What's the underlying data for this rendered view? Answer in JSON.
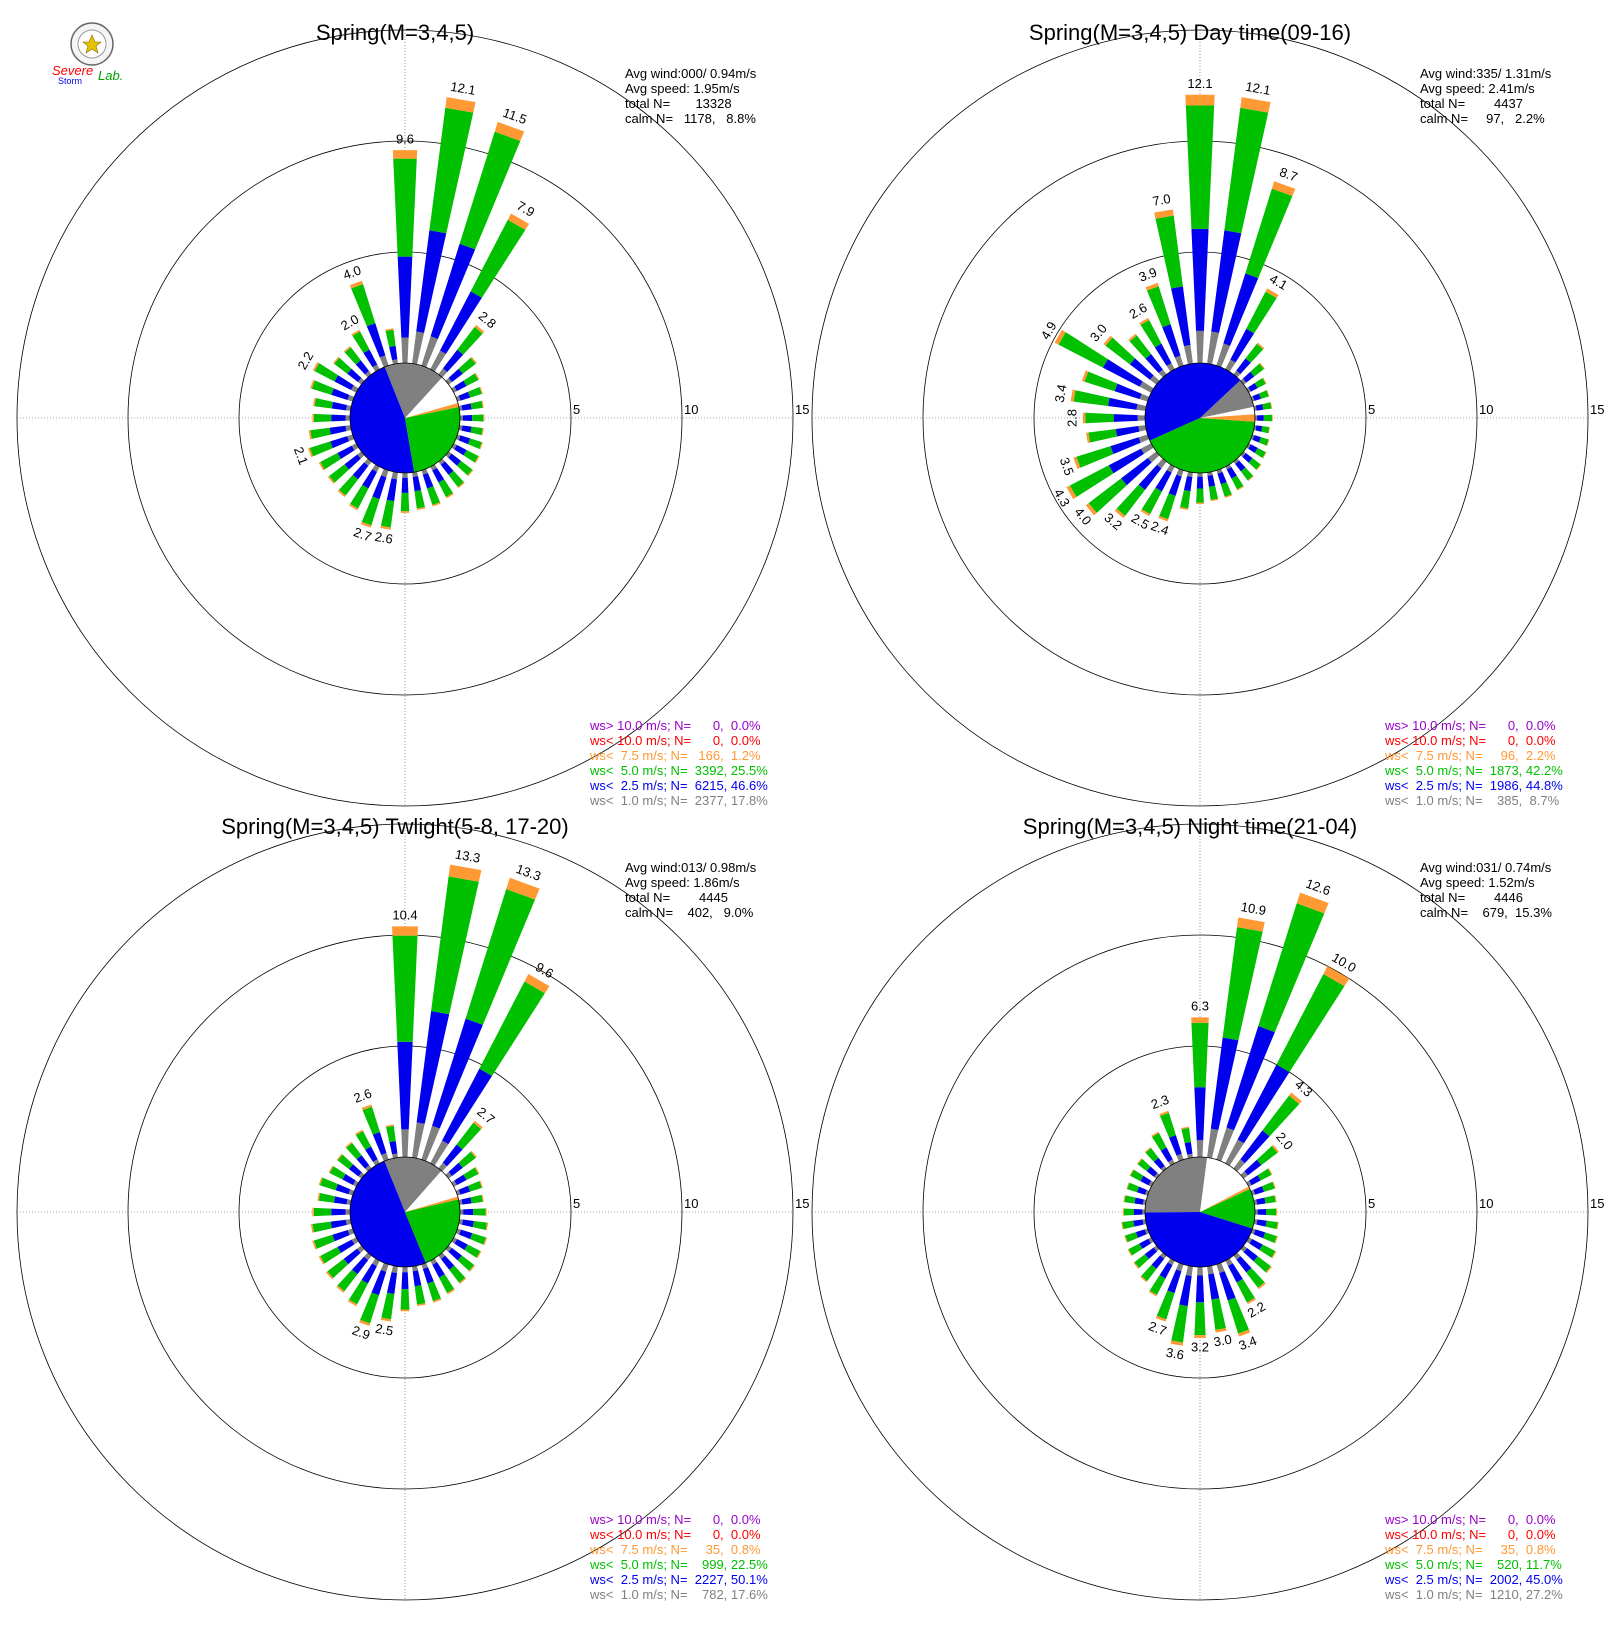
{
  "logo": {
    "text_a": "Severe",
    "text_b": "Storm",
    "text_c": "Lab."
  },
  "colors": {
    "gray": "#808080",
    "blue": "#0000ee",
    "green": "#00c000",
    "orange": "#ff9933",
    "red": "#ff0000",
    "purple": "#9900cc"
  },
  "chart_data": [
    {
      "type": "polar-bar",
      "title": "Spring(M=3,4,5)",
      "stats": [
        "Avg wind:000/ 0.94m/s",
        "Avg speed: 1.95m/s",
        "total N=       13328",
        "calm N=   1178,   8.8%"
      ],
      "rlim": [
        0,
        15
      ],
      "rings": [
        5,
        10,
        15
      ],
      "ring_labels": [
        "5",
        "10",
        "15"
      ],
      "legend": [
        {
          "text": "ws> 10.0 m/s; N=      0,  0.0%",
          "color": "#9900cc"
        },
        {
          "text": "ws< 10.0 m/s; N=      0,  0.0%",
          "color": "#ff0000"
        },
        {
          "text": "ws<  7.5 m/s; N=   166,  1.2%",
          "color": "#ff9933"
        },
        {
          "text": "ws<  5.0 m/s; N=  3392, 25.5%",
          "color": "#00c000"
        },
        {
          "text": "ws<  2.5 m/s; N=  6215, 46.6%",
          "color": "#0000ee"
        },
        {
          "text": "ws<  1.0 m/s; N=  2377, 17.8%",
          "color": "#808080"
        }
      ],
      "calm_pie": [
        8.8,
        17.8,
        46.6,
        25.5,
        1.2
      ],
      "bars": [
        {
          "dir": 0,
          "total": 9.6,
          "label": "9.6"
        },
        {
          "dir": 10,
          "total": 12.1,
          "label": "12.1"
        },
        {
          "dir": 20,
          "total": 11.5,
          "label": "11.5"
        },
        {
          "dir": 30,
          "total": 7.9,
          "label": "7.9"
        },
        {
          "dir": 40,
          "total": 2.8,
          "label": "2.8"
        },
        {
          "dir": 50,
          "total": 1.6
        },
        {
          "dir": 60,
          "total": 1.3
        },
        {
          "dir": 70,
          "total": 1.2
        },
        {
          "dir": 80,
          "total": 1.1
        },
        {
          "dir": 90,
          "total": 1.1
        },
        {
          "dir": 100,
          "total": 1.1
        },
        {
          "dir": 110,
          "total": 1.2
        },
        {
          "dir": 120,
          "total": 1.3
        },
        {
          "dir": 130,
          "total": 1.4
        },
        {
          "dir": 140,
          "total": 1.5
        },
        {
          "dir": 150,
          "total": 1.6
        },
        {
          "dir": 160,
          "total": 1.7
        },
        {
          "dir": 170,
          "total": 1.7
        },
        {
          "dir": 180,
          "total": 1.8
        },
        {
          "dir": 190,
          "total": 2.6,
          "label": "2.6"
        },
        {
          "dir": 200,
          "total": 2.7,
          "label": "2.7"
        },
        {
          "dir": 210,
          "total": 2.2
        },
        {
          "dir": 220,
          "total": 2.0
        },
        {
          "dir": 230,
          "total": 1.9
        },
        {
          "dir": 240,
          "total": 1.9
        },
        {
          "dir": 250,
          "total": 2.1,
          "label": "2.1"
        },
        {
          "dir": 260,
          "total": 1.9
        },
        {
          "dir": 270,
          "total": 1.7
        },
        {
          "dir": 280,
          "total": 1.7
        },
        {
          "dir": 290,
          "total": 2.0
        },
        {
          "dir": 300,
          "total": 2.2,
          "label": "2.2"
        },
        {
          "dir": 310,
          "total": 1.6
        },
        {
          "dir": 320,
          "total": 1.6
        },
        {
          "dir": 330,
          "total": 2.0,
          "label": "2.0"
        },
        {
          "dir": 340,
          "total": 4.0,
          "label": "4.0"
        },
        {
          "dir": 350,
          "total": 1.6
        }
      ]
    },
    {
      "type": "polar-bar",
      "title": "Spring(M=3,4,5) Day time(09-16)",
      "stats": [
        "Avg wind:335/ 1.31m/s",
        "Avg speed: 2.41m/s",
        "total N=        4437",
        "calm N=     97,   2.2%"
      ],
      "rlim": [
        0,
        15
      ],
      "rings": [
        5,
        10,
        15
      ],
      "ring_labels": [
        "5",
        "10",
        "15"
      ],
      "legend": [
        {
          "text": "ws> 10.0 m/s; N=      0,  0.0%",
          "color": "#9900cc"
        },
        {
          "text": "ws< 10.0 m/s; N=      0,  0.0%",
          "color": "#ff0000"
        },
        {
          "text": "ws<  7.5 m/s; N=     96,  2.2%",
          "color": "#ff9933"
        },
        {
          "text": "ws<  5.0 m/s; N=  1873, 42.2%",
          "color": "#00c000"
        },
        {
          "text": "ws<  2.5 m/s; N=  1986, 44.8%",
          "color": "#0000ee"
        },
        {
          "text": "ws<  1.0 m/s; N=    385,  8.7%",
          "color": "#808080"
        }
      ],
      "calm_pie": [
        2.2,
        8.7,
        44.8,
        42.2,
        2.2
      ],
      "bars": [
        {
          "dir": 0,
          "total": 12.1,
          "label": "12.1"
        },
        {
          "dir": 10,
          "total": 12.1,
          "label": "12.1"
        },
        {
          "dir": 20,
          "total": 8.7,
          "label": "8.7"
        },
        {
          "dir": 30,
          "total": 4.1,
          "label": "4.1"
        },
        {
          "dir": 40,
          "total": 1.8
        },
        {
          "dir": 50,
          "total": 1.2
        },
        {
          "dir": 60,
          "total": 0.9
        },
        {
          "dir": 70,
          "total": 0.8
        },
        {
          "dir": 80,
          "total": 0.8
        },
        {
          "dir": 90,
          "total": 0.8
        },
        {
          "dir": 100,
          "total": 0.7
        },
        {
          "dir": 110,
          "total": 0.8
        },
        {
          "dir": 120,
          "total": 0.9
        },
        {
          "dir": 130,
          "total": 1.0
        },
        {
          "dir": 140,
          "total": 1.1
        },
        {
          "dir": 150,
          "total": 1.2
        },
        {
          "dir": 160,
          "total": 1.3
        },
        {
          "dir": 170,
          "total": 1.3
        },
        {
          "dir": 180,
          "total": 1.4
        },
        {
          "dir": 190,
          "total": 1.7
        },
        {
          "dir": 200,
          "total": 2.4,
          "label": "2.4"
        },
        {
          "dir": 210,
          "total": 2.5,
          "label": "2.5"
        },
        {
          "dir": 220,
          "total": 3.2,
          "label": "3.2"
        },
        {
          "dir": 230,
          "total": 4.0,
          "label": "4.0"
        },
        {
          "dir": 240,
          "total": 4.3,
          "label": "4.3"
        },
        {
          "dir": 250,
          "total": 3.5,
          "label": "3.5"
        },
        {
          "dir": 260,
          "total": 2.7
        },
        {
          "dir": 270,
          "total": 2.8,
          "label": "2.8"
        },
        {
          "dir": 280,
          "total": 3.4,
          "label": "3.4"
        },
        {
          "dir": 290,
          "total": 3.1
        },
        {
          "dir": 300,
          "total": 4.9,
          "label": "4.9"
        },
        {
          "dir": 310,
          "total": 3.0,
          "label": "3.0"
        },
        {
          "dir": 320,
          "total": 2.3
        },
        {
          "dir": 330,
          "total": 2.6,
          "label": "2.6"
        },
        {
          "dir": 340,
          "total": 3.9,
          "label": "3.9"
        },
        {
          "dir": 350,
          "total": 7.0,
          "label": "7.0"
        }
      ]
    },
    {
      "type": "polar-bar",
      "title": "Spring(M=3,4,5) Twlight(5-8, 17-20)",
      "stats": [
        "Avg wind:013/ 0.98m/s",
        "Avg speed: 1.86m/s",
        "total N=        4445",
        "calm N=    402,   9.0%"
      ],
      "rlim": [
        0,
        15
      ],
      "rings": [
        5,
        10,
        15
      ],
      "ring_labels": [
        "5",
        "10",
        "15"
      ],
      "legend": [
        {
          "text": "ws> 10.0 m/s; N=      0,  0.0%",
          "color": "#9900cc"
        },
        {
          "text": "ws< 10.0 m/s; N=      0,  0.0%",
          "color": "#ff0000"
        },
        {
          "text": "ws<  7.5 m/s; N=     35,  0.8%",
          "color": "#ff9933"
        },
        {
          "text": "ws<  5.0 m/s; N=    999, 22.5%",
          "color": "#00c000"
        },
        {
          "text": "ws<  2.5 m/s; N=  2227, 50.1%",
          "color": "#0000ee"
        },
        {
          "text": "ws<  1.0 m/s; N=    782, 17.6%",
          "color": "#808080"
        }
      ],
      "calm_pie": [
        9.0,
        17.6,
        50.1,
        22.5,
        0.8
      ],
      "bars": [
        {
          "dir": 0,
          "total": 10.4,
          "label": "10.4"
        },
        {
          "dir": 10,
          "total": 13.3,
          "label": "13.3"
        },
        {
          "dir": 20,
          "total": 13.3,
          "label": "13.3"
        },
        {
          "dir": 30,
          "total": 9.6,
          "label": "9.6"
        },
        {
          "dir": 40,
          "total": 2.7,
          "label": "2.7"
        },
        {
          "dir": 50,
          "total": 1.6
        },
        {
          "dir": 60,
          "total": 1.3
        },
        {
          "dir": 70,
          "total": 1.2
        },
        {
          "dir": 80,
          "total": 1.1
        },
        {
          "dir": 90,
          "total": 1.2
        },
        {
          "dir": 100,
          "total": 1.3
        },
        {
          "dir": 110,
          "total": 1.4
        },
        {
          "dir": 120,
          "total": 1.4
        },
        {
          "dir": 130,
          "total": 1.5
        },
        {
          "dir": 140,
          "total": 1.6
        },
        {
          "dir": 150,
          "total": 1.7
        },
        {
          "dir": 160,
          "total": 1.8
        },
        {
          "dir": 170,
          "total": 1.8
        },
        {
          "dir": 180,
          "total": 2.0
        },
        {
          "dir": 190,
          "total": 2.5,
          "label": "2.5"
        },
        {
          "dir": 200,
          "total": 2.9,
          "label": "2.9"
        },
        {
          "dir": 210,
          "total": 2.3
        },
        {
          "dir": 220,
          "total": 2.1
        },
        {
          "dir": 230,
          "total": 2.0
        },
        {
          "dir": 240,
          "total": 1.9
        },
        {
          "dir": 250,
          "total": 1.9
        },
        {
          "dir": 260,
          "total": 1.8
        },
        {
          "dir": 270,
          "total": 1.7
        },
        {
          "dir": 280,
          "total": 1.5
        },
        {
          "dir": 290,
          "total": 1.6
        },
        {
          "dir": 300,
          "total": 1.4
        },
        {
          "dir": 310,
          "total": 1.4
        },
        {
          "dir": 320,
          "total": 1.5
        },
        {
          "dir": 330,
          "total": 1.7
        },
        {
          "dir": 340,
          "total": 2.6,
          "label": "2.6"
        },
        {
          "dir": 350,
          "total": 1.5
        }
      ]
    },
    {
      "type": "polar-bar",
      "title": "Spring(M=3,4,5) Night time(21-04)",
      "stats": [
        "Avg wind:031/ 0.74m/s",
        "Avg speed: 1.52m/s",
        "total N=        4446",
        "calm N=    679,  15.3%"
      ],
      "rlim": [
        0,
        15
      ],
      "rings": [
        5,
        10,
        15
      ],
      "ring_labels": [
        "5",
        "10",
        "15"
      ],
      "legend": [
        {
          "text": "ws> 10.0 m/s; N=      0,  0.0%",
          "color": "#9900cc"
        },
        {
          "text": "ws< 10.0 m/s; N=      0,  0.0%",
          "color": "#ff0000"
        },
        {
          "text": "ws<  7.5 m/s; N=     35,  0.8%",
          "color": "#ff9933"
        },
        {
          "text": "ws<  5.0 m/s; N=    520, 11.7%",
          "color": "#00c000"
        },
        {
          "text": "ws<  2.5 m/s; N=  2002, 45.0%",
          "color": "#0000ee"
        },
        {
          "text": "ws<  1.0 m/s; N=  1210, 27.2%",
          "color": "#808080"
        }
      ],
      "calm_pie": [
        15.3,
        27.2,
        45.0,
        11.7,
        0.8
      ],
      "bars": [
        {
          "dir": 0,
          "total": 6.3,
          "label": "6.3"
        },
        {
          "dir": 10,
          "total": 10.9,
          "label": "10.9"
        },
        {
          "dir": 20,
          "total": 12.6,
          "label": "12.6"
        },
        {
          "dir": 30,
          "total": 10.0,
          "label": "10.0"
        },
        {
          "dir": 40,
          "total": 4.3,
          "label": "4.3"
        },
        {
          "dir": 50,
          "total": 2.0,
          "label": "2.0"
        },
        {
          "dir": 60,
          "total": 1.2
        },
        {
          "dir": 70,
          "total": 1.1
        },
        {
          "dir": 80,
          "total": 1.0
        },
        {
          "dir": 90,
          "total": 1.0
        },
        {
          "dir": 100,
          "total": 1.1
        },
        {
          "dir": 110,
          "total": 1.2
        },
        {
          "dir": 120,
          "total": 1.4
        },
        {
          "dir": 130,
          "total": 1.6
        },
        {
          "dir": 140,
          "total": 1.9
        },
        {
          "dir": 150,
          "total": 2.2,
          "label": "2.2"
        },
        {
          "dir": 160,
          "total": 3.4,
          "label": "3.4"
        },
        {
          "dir": 170,
          "total": 3.0,
          "label": "3.0"
        },
        {
          "dir": 180,
          "total": 3.2,
          "label": "3.2"
        },
        {
          "dir": 190,
          "total": 3.6,
          "label": "3.6"
        },
        {
          "dir": 200,
          "total": 2.7,
          "label": "2.7"
        },
        {
          "dir": 210,
          "total": 1.8
        },
        {
          "dir": 220,
          "total": 1.5
        },
        {
          "dir": 230,
          "total": 1.3
        },
        {
          "dir": 240,
          "total": 1.2
        },
        {
          "dir": 250,
          "total": 1.1
        },
        {
          "dir": 260,
          "total": 1.1
        },
        {
          "dir": 270,
          "total": 1.0
        },
        {
          "dir": 280,
          "total": 1.0
        },
        {
          "dir": 290,
          "total": 1.0
        },
        {
          "dir": 300,
          "total": 1.1
        },
        {
          "dir": 310,
          "total": 1.1
        },
        {
          "dir": 320,
          "total": 1.2
        },
        {
          "dir": 330,
          "total": 1.6
        },
        {
          "dir": 340,
          "total": 2.3,
          "label": "2.3"
        },
        {
          "dir": 350,
          "total": 1.4
        }
      ]
    }
  ]
}
